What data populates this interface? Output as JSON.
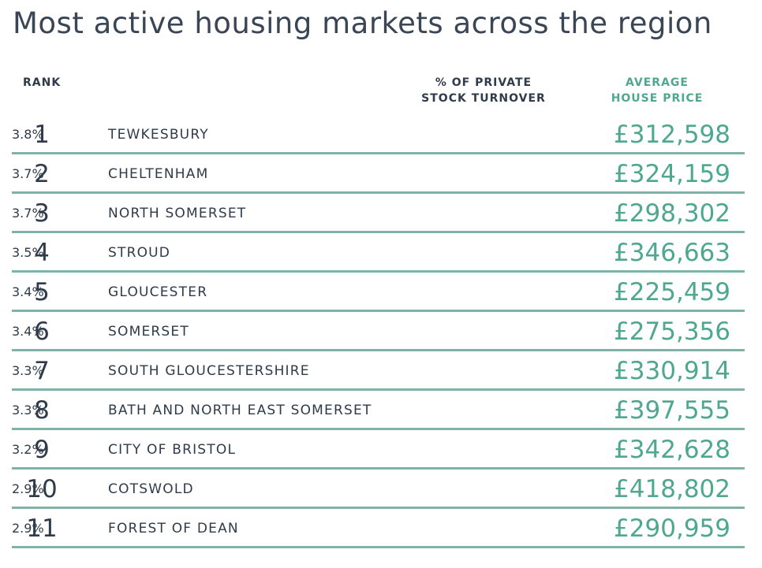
{
  "title": "Most active housing markets across the region",
  "headers": {
    "rank": "RANK",
    "turnover_line1": "% OF PRIVATE",
    "turnover_line2": "STOCK TURNOVER",
    "price_line1": "AVERAGE",
    "price_line2": "HOUSE PRICE"
  },
  "colors": {
    "text": "#2f3b4a",
    "accent_green": "#4ea78f",
    "row_divider": "#7fb2a9"
  },
  "chart_data": {
    "type": "table",
    "title": "Most active housing markets across the region",
    "columns": [
      "RANK",
      "",
      "% OF PRIVATE STOCK TURNOVER",
      "AVERAGE HOUSE PRICE"
    ],
    "rows": [
      {
        "rank": "1",
        "name": "TEWKESBURY",
        "turnover": "3.8%",
        "price": "£312,598"
      },
      {
        "rank": "2",
        "name": "CHELTENHAM",
        "turnover": "3.7%",
        "price": "£324,159"
      },
      {
        "rank": "3",
        "name": "NORTH SOMERSET",
        "turnover": "3.7%",
        "price": "£298,302"
      },
      {
        "rank": "4",
        "name": "STROUD",
        "turnover": "3.5%",
        "price": "£346,663"
      },
      {
        "rank": "5",
        "name": "GLOUCESTER",
        "turnover": "3.4%",
        "price": "£225,459"
      },
      {
        "rank": "6",
        "name": "SOMERSET",
        "turnover": "3.4%",
        "price": "£275,356"
      },
      {
        "rank": "7",
        "name": "SOUTH GLOUCESTERSHIRE",
        "turnover": "3.3%",
        "price": "£330,914"
      },
      {
        "rank": "8",
        "name": "BATH AND NORTH EAST SOMERSET",
        "turnover": "3.3%",
        "price": "£397,555"
      },
      {
        "rank": "9",
        "name": "CITY OF BRISTOL",
        "turnover": "3.2%",
        "price": "£342,628"
      },
      {
        "rank": "10",
        "name": "COTSWOLD",
        "turnover": "2.9%",
        "price": "£418,802"
      },
      {
        "rank": "11",
        "name": "FOREST OF DEAN",
        "turnover": "2.9%",
        "price": "£290,959"
      }
    ]
  }
}
